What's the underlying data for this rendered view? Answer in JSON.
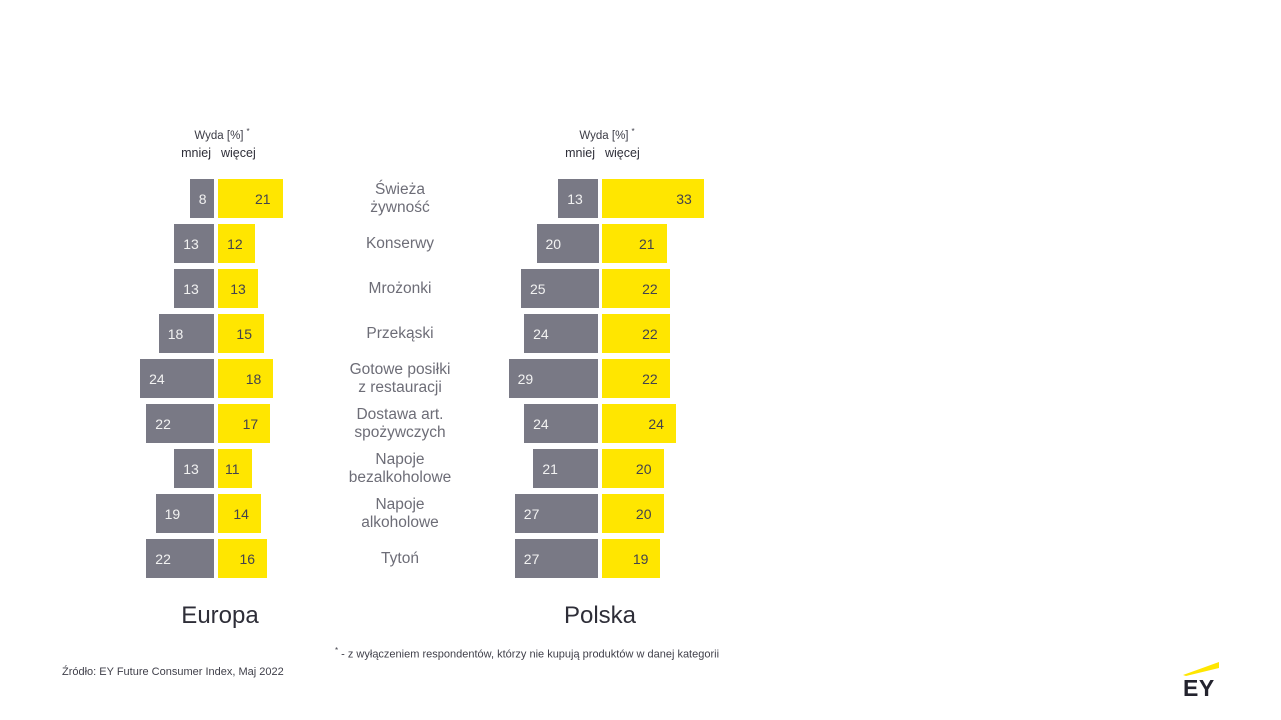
{
  "axis_header": {
    "label": "Wyda [%]",
    "marker": "*",
    "less_label": "mniej",
    "more_label": "więcej"
  },
  "footnote": {
    "marker": "*",
    "text": "- z wyłączeniem respondentów, którzy nie kupują produktów w danej kategorii"
  },
  "source": "Źródło: EY Future Consumer Index, Maj 2022",
  "logo": {
    "text": "EY"
  },
  "colors": {
    "less_bar": "#797985",
    "more_bar": "#FFE600",
    "value_on_less": "#f2f2f2",
    "value_on_more": "#43434d"
  },
  "chart_data": {
    "type": "bar",
    "subtype": "diverging-horizontal",
    "unit": "%",
    "axis_header": "Wyda [%] *",
    "series_labels": [
      "mniej",
      "więcej"
    ],
    "legend_position": "top",
    "grid": false,
    "categories": [
      "Świeża żywność",
      "Konserwy",
      "Mrożonki",
      "Przekąski",
      "Gotowe posiłki z restauracji",
      "Dostawa art. spożywczych",
      "Napoje bezalkoholowe",
      "Napoje alkoholowe",
      "Tytoń"
    ],
    "categories_display": [
      [
        "Świeża",
        "żywność"
      ],
      [
        "Konserwy"
      ],
      [
        "Mrożonki"
      ],
      [
        "Przekąski"
      ],
      [
        "Gotowe posiłki",
        "z restauracji"
      ],
      [
        "Dostawa art.",
        "spożywczych"
      ],
      [
        "Napoje",
        "bezalkoholowe"
      ],
      [
        "Napoje",
        "alkoholowe"
      ],
      [
        "Tytoń"
      ]
    ],
    "groups": [
      {
        "title": "Europa",
        "series": [
          {
            "name": "mniej",
            "values": [
              8,
              13,
              13,
              18,
              24,
              22,
              13,
              19,
              22
            ]
          },
          {
            "name": "więcej",
            "values": [
              21,
              12,
              13,
              15,
              18,
              17,
              11,
              14,
              16
            ]
          }
        ]
      },
      {
        "title": "Polska",
        "series": [
          {
            "name": "mniej",
            "values": [
              13,
              20,
              25,
              24,
              29,
              24,
              21,
              27,
              27
            ]
          },
          {
            "name": "więcej",
            "values": [
              33,
              21,
              22,
              22,
              22,
              24,
              20,
              20,
              19
            ]
          }
        ]
      }
    ]
  }
}
